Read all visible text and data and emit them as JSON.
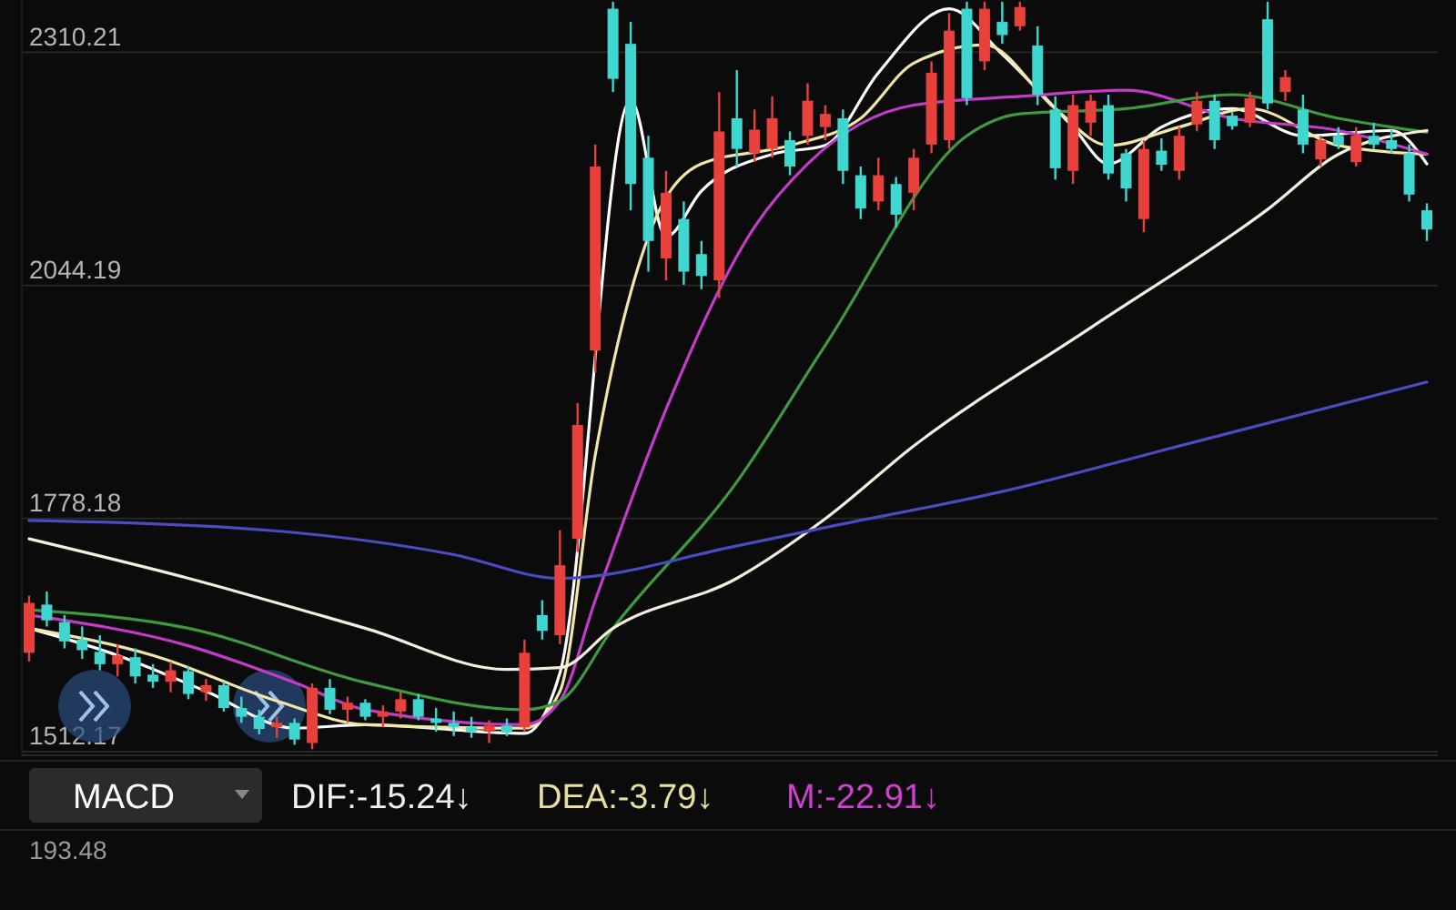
{
  "chart_data": {
    "type": "candlestick",
    "categories": [
      null,
      null,
      null,
      null,
      null,
      null,
      null,
      null,
      null,
      null,
      null,
      null,
      null,
      null,
      null,
      null,
      null,
      null,
      null,
      null,
      null,
      null,
      null,
      null,
      null,
      null,
      null,
      null,
      null,
      null,
      null,
      null,
      null,
      null,
      null,
      null,
      null,
      null,
      null,
      null,
      null,
      null,
      null,
      null,
      null,
      null,
      null,
      null,
      null,
      null,
      null,
      null,
      null,
      null,
      null,
      null,
      null,
      null,
      null,
      null,
      null,
      null,
      null,
      null,
      null,
      null,
      null,
      null,
      null,
      null,
      null,
      null,
      null,
      null,
      null,
      null,
      null,
      null,
      null,
      null
    ],
    "ohlc": [
      [
        1625,
        1690,
        1615,
        1682
      ],
      [
        1680,
        1695,
        1655,
        1662
      ],
      [
        1660,
        1668,
        1630,
        1638
      ],
      [
        1640,
        1655,
        1618,
        1628
      ],
      [
        1626,
        1645,
        1605,
        1612
      ],
      [
        1612,
        1635,
        1598,
        1622
      ],
      [
        1620,
        1630,
        1590,
        1598
      ],
      [
        1600,
        1612,
        1585,
        1592
      ],
      [
        1592,
        1615,
        1580,
        1605
      ],
      [
        1604,
        1610,
        1572,
        1578
      ],
      [
        1580,
        1595,
        1570,
        1588
      ],
      [
        1588,
        1592,
        1558,
        1562
      ],
      [
        1562,
        1575,
        1545,
        1552
      ],
      [
        1552,
        1560,
        1532,
        1538
      ],
      [
        1540,
        1552,
        1528,
        1545
      ],
      [
        1545,
        1550,
        1520,
        1526
      ],
      [
        1522,
        1590,
        1515,
        1585
      ],
      [
        1585,
        1595,
        1555,
        1560
      ],
      [
        1560,
        1575,
        1545,
        1568
      ],
      [
        1568,
        1572,
        1548,
        1552
      ],
      [
        1552,
        1565,
        1540,
        1558
      ],
      [
        1558,
        1580,
        1550,
        1572
      ],
      [
        1572,
        1578,
        1548,
        1552
      ],
      [
        1550,
        1562,
        1535,
        1545
      ],
      [
        1545,
        1558,
        1530,
        1540
      ],
      [
        1540,
        1552,
        1528,
        1535
      ],
      [
        1535,
        1548,
        1522,
        1542
      ],
      [
        1542,
        1550,
        1530,
        1534
      ],
      [
        1540,
        1640,
        1535,
        1625
      ],
      [
        1668,
        1685,
        1640,
        1650
      ],
      [
        1645,
        1765,
        1635,
        1725
      ],
      [
        1755,
        1910,
        1740,
        1885
      ],
      [
        1970,
        2205,
        1945,
        2180
      ],
      [
        2360,
        2368,
        2265,
        2280
      ],
      [
        2320,
        2345,
        2130,
        2160
      ],
      [
        2190,
        2215,
        2060,
        2095
      ],
      [
        2075,
        2175,
        2050,
        2150
      ],
      [
        2120,
        2140,
        2045,
        2060
      ],
      [
        2080,
        2095,
        2040,
        2055
      ],
      [
        2050,
        2265,
        2030,
        2220
      ],
      [
        2235,
        2290,
        2180,
        2200
      ],
      [
        2195,
        2245,
        2185,
        2222
      ],
      [
        2200,
        2260,
        2190,
        2235
      ],
      [
        2210,
        2220,
        2170,
        2180
      ],
      [
        2215,
        2275,
        2205,
        2255
      ],
      [
        2225,
        2250,
        2210,
        2240
      ],
      [
        2235,
        2245,
        2160,
        2175
      ],
      [
        2170,
        2180,
        2120,
        2132
      ],
      [
        2140,
        2190,
        2130,
        2170
      ],
      [
        2160,
        2168,
        2110,
        2125
      ],
      [
        2150,
        2200,
        2130,
        2190
      ],
      [
        2205,
        2300,
        2195,
        2287
      ],
      [
        2210,
        2355,
        2200,
        2335
      ],
      [
        2360,
        2368,
        2250,
        2258
      ],
      [
        2300,
        2368,
        2290,
        2360
      ],
      [
        2345,
        2368,
        2320,
        2330
      ],
      [
        2340,
        2368,
        2335,
        2362
      ],
      [
        2318,
        2340,
        2250,
        2262
      ],
      [
        2245,
        2260,
        2165,
        2178
      ],
      [
        2175,
        2262,
        2160,
        2250
      ],
      [
        2230,
        2262,
        2215,
        2255
      ],
      [
        2250,
        2262,
        2165,
        2172
      ],
      [
        2195,
        2200,
        2140,
        2155
      ],
      [
        2120,
        2210,
        2105,
        2200
      ],
      [
        2198,
        2212,
        2175,
        2182
      ],
      [
        2175,
        2225,
        2165,
        2215
      ],
      [
        2228,
        2265,
        2220,
        2255
      ],
      [
        2255,
        2262,
        2200,
        2210
      ],
      [
        2238,
        2242,
        2222,
        2226
      ],
      [
        2230,
        2265,
        2225,
        2258
      ],
      [
        2348,
        2368,
        2245,
        2252
      ],
      [
        2265,
        2290,
        2255,
        2282
      ],
      [
        2245,
        2262,
        2195,
        2205
      ],
      [
        2188,
        2215,
        2180,
        2210
      ],
      [
        2215,
        2225,
        2200,
        2205
      ],
      [
        2185,
        2225,
        2180,
        2215
      ],
      [
        2215,
        2230,
        2200,
        2205
      ],
      [
        2210,
        2222,
        2195,
        2200
      ],
      [
        2195,
        2205,
        2140,
        2148
      ],
      [
        2130,
        2138,
        2095,
        2108
      ]
    ],
    "colors": [
      "#e8403a",
      "#3fd6d0",
      "#3fd6d0",
      "#3fd6d0",
      "#3fd6d0",
      "#e8403a",
      "#3fd6d0",
      "#3fd6d0",
      "#e8403a",
      "#3fd6d0",
      "#e8403a",
      "#3fd6d0",
      "#3fd6d0",
      "#3fd6d0",
      "#e8403a",
      "#3fd6d0",
      "#e8403a",
      "#3fd6d0",
      "#e8403a",
      "#3fd6d0",
      "#e8403a",
      "#e8403a",
      "#3fd6d0",
      "#3fd6d0",
      "#3fd6d0",
      "#3fd6d0",
      "#e8403a",
      "#3fd6d0",
      "#e8403a",
      "#3fd6d0",
      "#e8403a",
      "#e8403a",
      "#e8403a",
      "#3fd6d0",
      "#3fd6d0",
      "#3fd6d0",
      "#e8403a",
      "#3fd6d0",
      "#3fd6d0",
      "#e8403a",
      "#3fd6d0",
      "#e8403a",
      "#e8403a",
      "#3fd6d0",
      "#e8403a",
      "#e8403a",
      "#3fd6d0",
      "#3fd6d0",
      "#e8403a",
      "#3fd6d0",
      "#e8403a",
      "#e8403a",
      "#e8403a",
      "#3fd6d0",
      "#e8403a",
      "#3fd6d0",
      "#e8403a",
      "#3fd6d0",
      "#3fd6d0",
      "#e8403a",
      "#e8403a",
      "#3fd6d0",
      "#3fd6d0",
      "#e8403a",
      "#3fd6d0",
      "#e8403a",
      "#e8403a",
      "#3fd6d0",
      "#3fd6d0",
      "#e8403a",
      "#3fd6d0",
      "#e8403a",
      "#3fd6d0",
      "#e8403a",
      "#3fd6d0",
      "#e8403a",
      "#3fd6d0",
      "#3fd6d0",
      "#3fd6d0",
      "#3fd6d0"
    ],
    "series": [
      {
        "type": "line",
        "color": "#ffffff",
        "values": [
          1653,
          null,
          null,
          null,
          null,
          1622,
          null,
          null,
          null,
          null,
          1581,
          null,
          null,
          null,
          null,
          1539,
          null,
          null,
          null,
          1543,
          null,
          null,
          null,
          null,
          null,
          null,
          null,
          null,
          1533,
          null,
          1602,
          null,
          null,
          null,
          2256,
          null,
          2100,
          null,
          2152,
          null,
          null,
          null,
          2194,
          null,
          null,
          2204,
          null,
          null,
          2287,
          null,
          null,
          null,
          2360,
          null,
          null,
          2308,
          null,
          null,
          null,
          2225,
          null,
          2183,
          null,
          null,
          2225,
          null,
          null,
          null,
          2246,
          null,
          null,
          null,
          2215,
          null,
          null,
          null,
          null,
          2221,
          null,
          2183
        ]
      },
      {
        "type": "line",
        "color": "#efe6a8",
        "values": [
          1653,
          null,
          null,
          null,
          null,
          null,
          null,
          1622,
          null,
          null,
          null,
          null,
          null,
          null,
          1570,
          null,
          null,
          null,
          null,
          1543,
          null,
          null,
          null,
          null,
          null,
          null,
          null,
          null,
          1539,
          null,
          1581,
          null,
          1851,
          null,
          null,
          2100,
          null,
          null,
          2183,
          null,
          null,
          null,
          null,
          2204,
          null,
          null,
          null,
          2235,
          null,
          null,
          2298,
          null,
          null,
          null,
          2319,
          null,
          null,
          null,
          2246,
          null,
          null,
          2204,
          null,
          null,
          null,
          2225,
          null,
          null,
          null,
          2246,
          null,
          null,
          null,
          null,
          2204,
          null,
          null,
          null,
          null,
          2194
        ]
      },
      {
        "type": "line",
        "color": "#c23cc8",
        "values": [
          1668,
          null,
          null,
          null,
          null,
          null,
          null,
          null,
          null,
          1633,
          null,
          null,
          null,
          null,
          null,
          1591,
          null,
          null,
          null,
          1560,
          null,
          null,
          null,
          null,
          null,
          null,
          null,
          null,
          1543,
          null,
          1570,
          null,
          1685,
          null,
          null,
          null,
          1903,
          null,
          null,
          null,
          null,
          2111,
          null,
          null,
          2183,
          null,
          null,
          null,
          null,
          null,
          2250,
          null,
          null,
          null,
          null,
          null,
          2260,
          null,
          null,
          null,
          null,
          null,
          2267,
          null,
          null,
          null,
          null,
          null,
          2235,
          null,
          null,
          null,
          null,
          null,
          2221,
          null,
          null,
          null,
          null,
          2194
        ]
      },
      {
        "type": "line",
        "color": "#3f9a3f",
        "values": [
          1674,
          null,
          null,
          null,
          null,
          null,
          null,
          null,
          null,
          1653,
          null,
          null,
          null,
          null,
          null,
          null,
          null,
          null,
          null,
          1591,
          null,
          null,
          null,
          null,
          null,
          null,
          null,
          null,
          1560,
          null,
          1570,
          null,
          null,
          1653,
          null,
          null,
          null,
          null,
          null,
          null,
          1820,
          null,
          null,
          null,
          null,
          1976,
          null,
          null,
          null,
          null,
          null,
          null,
          null,
          2215,
          null,
          null,
          2240,
          null,
          null,
          null,
          null,
          null,
          2246,
          null,
          null,
          null,
          null,
          null,
          2262,
          null,
          null,
          null,
          null,
          null,
          2235,
          null,
          null,
          null,
          null,
          2219
        ]
      },
      {
        "type": "line",
        "color": "#f3efdc",
        "values": [
          1755,
          null,
          null,
          null,
          null,
          null,
          null,
          null,
          null,
          1710,
          null,
          null,
          null,
          null,
          null,
          null,
          null,
          null,
          null,
          1653,
          null,
          null,
          null,
          null,
          null,
          null,
          null,
          1606,
          null,
          null,
          1608,
          null,
          null,
          1653,
          null,
          null,
          null,
          null,
          null,
          null,
          1710,
          null,
          null,
          null,
          null,
          1778,
          null,
          null,
          null,
          null,
          1861,
          null,
          null,
          null,
          null,
          null,
          null,
          null,
          null,
          null,
          1996,
          null,
          null,
          null,
          null,
          null,
          null,
          null,
          null,
          null,
          2131,
          null,
          null,
          null,
          2194,
          null,
          null,
          null,
          null,
          2221
        ]
      },
      {
        "type": "line",
        "color": "#4b4bc0",
        "values": [
          1776,
          null,
          null,
          null,
          null,
          null,
          null,
          null,
          null,
          null,
          null,
          null,
          null,
          null,
          1764,
          null,
          null,
          null,
          null,
          null,
          null,
          null,
          null,
          null,
          1737,
          null,
          null,
          null,
          null,
          null,
          1710,
          null,
          null,
          null,
          null,
          null,
          null,
          null,
          null,
          null,
          1747,
          null,
          null,
          null,
          null,
          1768,
          null,
          null,
          null,
          null,
          null,
          null,
          null,
          null,
          null,
          1809,
          null,
          null,
          null,
          null,
          null,
          null,
          null,
          null,
          null,
          1861,
          null,
          null,
          null,
          null,
          null,
          null,
          null,
          null,
          null,
          null,
          null,
          null,
          null,
          1934
        ]
      }
    ],
    "ylim": [
      1508,
      2370
    ],
    "yticks": [
      1512.17,
      1778.18,
      2044.19,
      2310.21
    ],
    "grid": "y",
    "annotations": [
      "MACD",
      "DIF:-15.24↓",
      "DEA:-3.79↓",
      "M:-22.91↓",
      "193.48"
    ]
  }
}
